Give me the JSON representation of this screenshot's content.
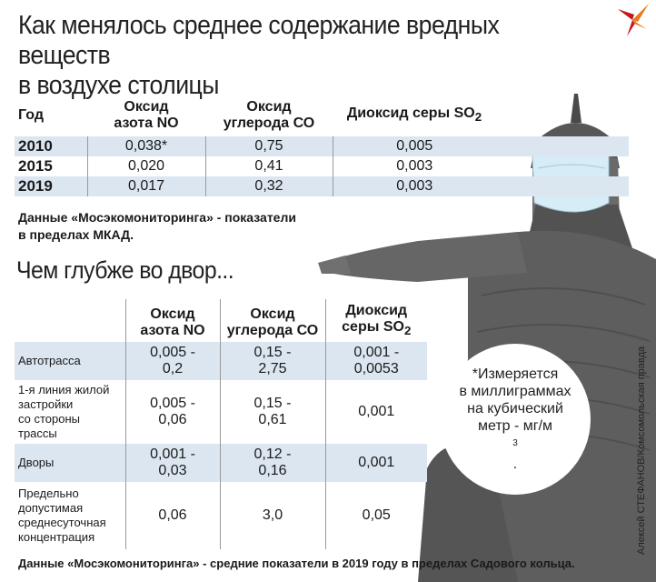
{
  "title_line1": "Как менялось среднее содержание вредных веществ",
  "title_line2": "в воздухе столицы",
  "table1": {
    "headers": {
      "year": "Год",
      "no_line1": "Оксид",
      "no_line2": "азота NO",
      "co_line1": "Оксид",
      "co_line2": "углерода СО",
      "so2_text": "Диоксид серы SO",
      "so2_sub": "2"
    },
    "rows": [
      {
        "year": "2010",
        "no": "0,038*",
        "co": "0,75",
        "so2": "0,005"
      },
      {
        "year": "2015",
        "no": "0,020",
        "co": "0,41",
        "so2": "0,003"
      },
      {
        "year": "2019",
        "no": "0,017",
        "co": "0,32",
        "so2": "0,003"
      }
    ]
  },
  "note1_line1": "Данные «Мосэкомониторинга» - показатели",
  "note1_line2": "в пределах МКАД.",
  "heading2": "Чем глубже во двор...",
  "table2": {
    "headers": {
      "no_line1": "Оксид",
      "no_line2": "азота NO",
      "co_line1": "Оксид",
      "co_line2": "углерода СО",
      "so2_line1": "Диоксид",
      "so2_line2": "серы SO",
      "so2_sub": "2"
    },
    "rows": [
      {
        "label": "Автотрасса",
        "no1": "0,005 -",
        "no2": "0,2",
        "co1": "0,15 -",
        "co2": "2,75",
        "so1": "0,001 -",
        "so2": "0,0053"
      },
      {
        "label_l1": "1-я линия жилой",
        "label_l2": "застройки",
        "label_l3": "со стороны",
        "label_l4": "трассы",
        "no1": "0,005 -",
        "no2": "0,06",
        "co1": "0,15 -",
        "co2": "0,61",
        "so": "0,001"
      },
      {
        "label": "Дворы",
        "no1": "0,001 -",
        "no2": "0,03",
        "co1": "0,12 -",
        "co2": "0,16",
        "so": "0,001"
      },
      {
        "label_l1": "Предельно",
        "label_l2": "допустимая",
        "label_l3": "среднесуточная",
        "label_l4": "концентрация",
        "no": "0,06",
        "co": "3,0",
        "so": "0,05"
      }
    ]
  },
  "bubble": {
    "line1": "*Измеряется",
    "line2": "в миллиграммах",
    "line3": "на кубический",
    "line4_pre": "метр - мг/м",
    "line4_sup": "3",
    "line4_post": "."
  },
  "photo_credit": "Алексей СТЕФАНОВ/Комсомольская правда",
  "note2": "Данные «Мосэкомониторинга» - средние показатели в 2019 году в пределах Садового кольца.",
  "colors": {
    "row_shade": "#dce6f1",
    "statue": "#5e5e5e",
    "mask": "#d6ecf7"
  }
}
